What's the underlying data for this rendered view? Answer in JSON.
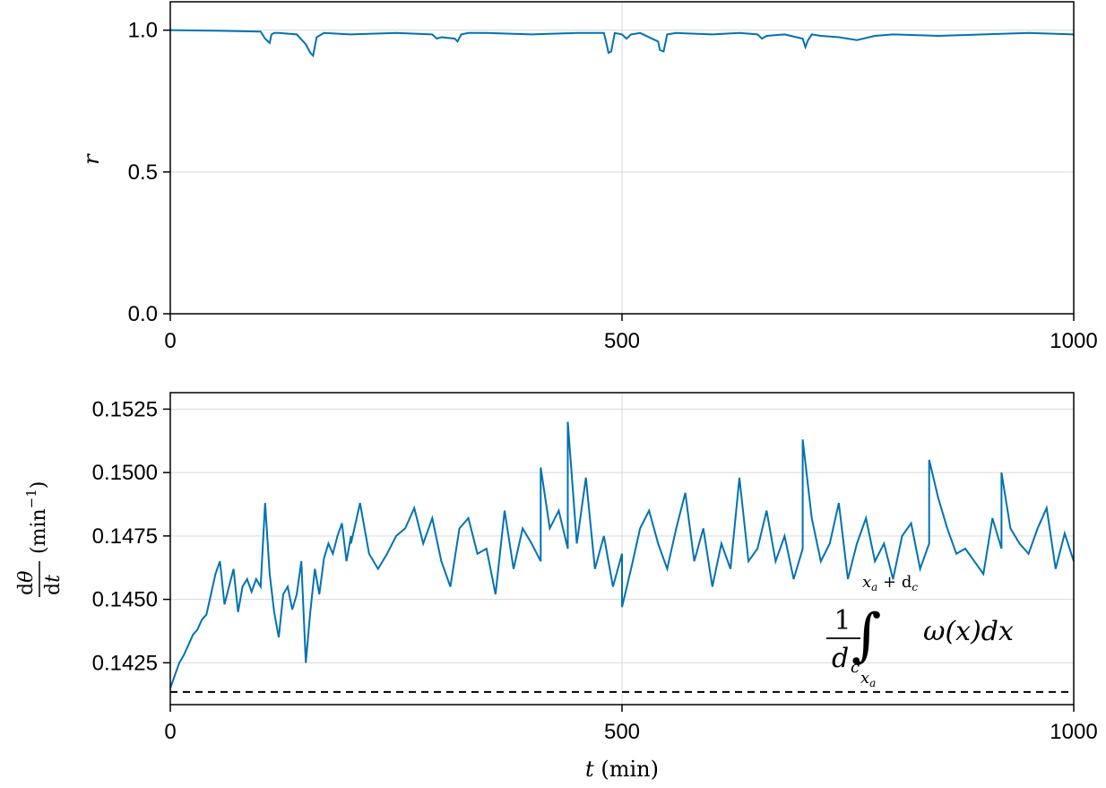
{
  "chart_data": [
    {
      "type": "line",
      "ylabel": "r",
      "xlim": [
        0,
        1000
      ],
      "ylim": [
        0.0,
        1.1
      ],
      "xticks": [
        0,
        500,
        1000
      ],
      "xtick_labels": [
        "0",
        "500",
        "1000"
      ],
      "yticks": [
        0.0,
        0.5,
        1.0
      ],
      "ytick_labels": [
        "0.0",
        "0.5",
        "1.0"
      ],
      "grid": true,
      "color": "#0072B2",
      "series": [
        {
          "x": [
            0,
            50,
            100,
            105,
            110,
            112,
            115,
            120,
            140,
            150,
            155,
            158,
            162,
            170,
            200,
            250,
            290,
            295,
            300,
            315,
            318,
            322,
            330,
            350,
            400,
            450,
            480,
            483,
            485,
            488,
            492,
            500,
            505,
            510,
            520,
            540,
            542,
            546,
            550,
            560,
            600,
            630,
            650,
            655,
            660,
            680,
            700,
            703,
            706,
            710,
            720,
            740,
            760,
            780,
            800,
            850,
            900,
            950,
            1000
          ],
          "y": [
            1.0,
            0.998,
            0.995,
            0.97,
            0.955,
            0.985,
            0.99,
            0.99,
            0.985,
            0.95,
            0.92,
            0.91,
            0.975,
            0.99,
            0.985,
            0.99,
            0.985,
            0.97,
            0.975,
            0.97,
            0.96,
            0.985,
            0.99,
            0.99,
            0.985,
            0.99,
            0.99,
            0.95,
            0.92,
            0.925,
            0.99,
            0.985,
            0.97,
            0.985,
            0.99,
            0.96,
            0.93,
            0.925,
            0.985,
            0.99,
            0.985,
            0.99,
            0.985,
            0.97,
            0.98,
            0.985,
            0.97,
            0.94,
            0.965,
            0.985,
            0.98,
            0.975,
            0.965,
            0.98,
            0.985,
            0.98,
            0.985,
            0.99,
            0.985
          ]
        }
      ]
    },
    {
      "type": "line",
      "xlabel": "t (min)",
      "ylabel": "dθ/dt (min⁻¹)",
      "xlim": [
        0,
        1000
      ],
      "ylim": [
        0.14085,
        0.15315
      ],
      "xticks": [
        0,
        500,
        1000
      ],
      "xtick_labels": [
        "0",
        "500",
        "1000"
      ],
      "yticks": [
        0.1425,
        0.145,
        0.1475,
        0.15,
        0.1525
      ],
      "ytick_labels": [
        "0.1425",
        "0.1450",
        "0.1475",
        "0.1500",
        "0.1525"
      ],
      "grid": true,
      "color": "#0072B2",
      "series": [
        {
          "x": [
            0,
            5,
            10,
            15,
            20,
            25,
            30,
            35,
            40,
            45,
            50,
            55,
            60,
            65,
            70,
            75,
            80,
            85,
            90,
            95,
            100,
            105,
            110,
            115,
            120,
            125,
            130,
            135,
            140,
            145,
            150,
            155,
            160,
            165,
            170,
            175,
            180,
            185,
            190,
            195,
            200,
            210,
            220,
            230,
            240,
            250,
            260,
            270,
            280,
            290,
            300,
            310,
            320,
            330,
            340,
            350,
            360,
            370,
            380,
            390,
            400,
            410,
            420,
            430,
            440,
            450,
            460,
            470,
            480,
            490,
            500,
            510,
            520,
            530,
            540,
            550,
            560,
            570,
            580,
            590,
            600,
            610,
            620,
            630,
            640,
            650,
            660,
            670,
            680,
            690,
            700,
            710,
            720,
            730,
            740,
            750,
            760,
            770,
            780,
            790,
            800,
            810,
            820,
            830,
            840,
            850,
            860,
            870,
            880,
            890,
            900,
            910,
            920,
            930,
            940,
            950,
            960,
            970,
            980,
            990,
            1000
          ],
          "y": [
            0.1415,
            0.142,
            0.1425,
            0.1428,
            0.1432,
            0.1436,
            0.1438,
            0.1442,
            0.1444,
            0.1452,
            0.146,
            0.1465,
            0.1448,
            0.1455,
            0.1462,
            0.1445,
            0.1455,
            0.1458,
            0.1453,
            0.1458,
            0.1455,
            0.1488,
            0.146,
            0.1445,
            0.1435,
            0.1452,
            0.1455,
            0.1446,
            0.1452,
            0.1465,
            0.1425,
            0.1445,
            0.1462,
            0.1452,
            0.1466,
            0.1472,
            0.1468,
            0.1475,
            0.148,
            0.1465,
            0.1475,
            0.1488,
            0.1468,
            0.1462,
            0.1468,
            0.1475,
            0.1478,
            0.1486,
            0.1472,
            0.1482,
            0.1465,
            0.1455,
            0.1478,
            0.1482,
            0.1468,
            0.147,
            0.1452,
            0.1485,
            0.1462,
            0.1478,
            0.1472,
            0.1465,
            0.1478,
            0.1485,
            0.147,
            0.1472,
            0.1498,
            0.1462,
            0.1475,
            0.1455,
            0.1468,
            0.1462,
            0.1478,
            0.1485,
            0.1472,
            0.1462,
            0.1478,
            0.1492,
            0.1465,
            0.1478,
            0.1455,
            0.1472,
            0.1462,
            0.1498,
            0.1465,
            0.147,
            0.1485,
            0.1465,
            0.1475,
            0.1458,
            0.147,
            0.1482,
            0.1465,
            0.1472,
            0.1488,
            0.1458,
            0.1472,
            0.1482,
            0.1465,
            0.1472,
            0.1458,
            0.1475,
            0.148,
            0.1462,
            0.1472,
            0.149,
            0.1478,
            0.1468,
            0.147,
            0.1465,
            0.146,
            0.1482,
            0.147,
            0.1478,
            0.1472,
            0.1468,
            0.1478,
            0.1486,
            0.1462,
            0.1476,
            0.1465
          ],
          "peaks": [
            [
              440,
              0.152
            ],
            [
              500,
              0.1447
            ],
            [
              410,
              0.1502
            ],
            [
              840,
              0.1505
            ],
            [
              700,
              0.1513
            ],
            [
              920,
              0.15
            ],
            [
              200,
              0.1472
            ]
          ]
        }
      ],
      "reference_line": {
        "y": 0.14135,
        "style": "dashed",
        "color": "#000000"
      }
    }
  ],
  "annotation": {
    "numerator": "1",
    "denominator": "d",
    "denominator_sub": "c",
    "integral": "∫",
    "upper_limit": "x",
    "upper_limit_sub": "a",
    "upper_limit_rest": " + d",
    "upper_limit_rest_sub": "c",
    "lower_limit": "x",
    "lower_limit_sub": "a",
    "integrand": "ω(x)dx"
  }
}
